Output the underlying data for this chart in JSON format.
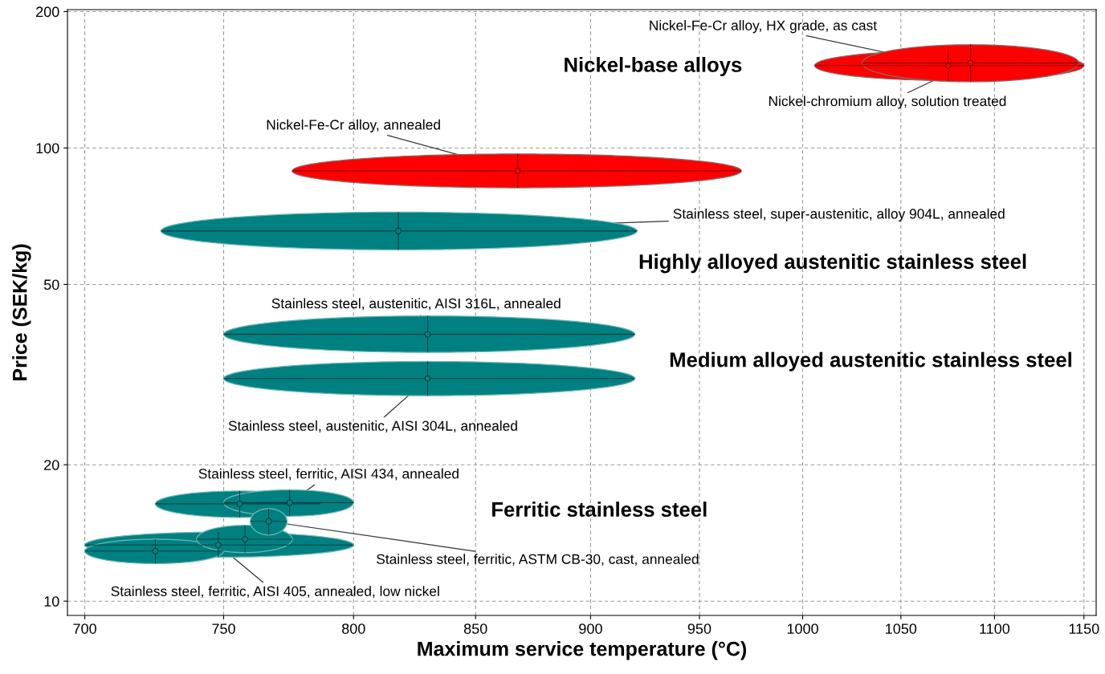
{
  "chart_data": {
    "type": "scatter",
    "xlabel": "Maximum service temperature (°C)",
    "ylabel": "Price (SEK/kg)",
    "log": "xy",
    "grid": true,
    "marker": "circle",
    "xlim": [
      694,
      1157
    ],
    "ylim": [
      9.3,
      202
    ],
    "xticks": [
      700,
      750,
      800,
      850,
      900,
      950,
      1000,
      1050,
      1100,
      1150
    ],
    "yticks": [
      10,
      20,
      50,
      100,
      200
    ],
    "annotations": [
      "Nickel-base alloys",
      "Highly alloyed austenitic stainless steel",
      "Medium alloyed austenitic stainless steel",
      "Ferritic stainless steel"
    ],
    "series": [
      {
        "name": "Nickel-Fe-Cr alloy, HX grade, as cast",
        "color": "#ff0000",
        "x": [
          1075
        ],
        "values": [
          152
        ],
        "xerrors": [
          [
            1006,
            1150
          ]
        ],
        "errors": [
          [
            141,
            164
          ]
        ]
      },
      {
        "name": "Nickel-chromium alloy, solution treated",
        "color": "#ff0000",
        "x": [
          1087
        ],
        "values": [
          154
        ],
        "xerrors": [
          [
            1030,
            1147
          ]
        ],
        "errors": [
          [
            140,
            169
          ]
        ]
      },
      {
        "name": "Nickel-Fe-Cr alloy, annealed",
        "color": "#ff0000",
        "x": [
          868
        ],
        "values": [
          89
        ],
        "xerrors": [
          [
            776,
            970
          ]
        ],
        "errors": [
          [
            81.7,
            97
          ]
        ]
      },
      {
        "name": "Stainless steel, super-austenitic, alloy 904L, annealed",
        "color": "#008080",
        "x": [
          818
        ],
        "values": [
          65.6
        ],
        "xerrors": [
          [
            727,
            921
          ]
        ],
        "errors": [
          [
            59.6,
            72.2
          ]
        ]
      },
      {
        "name": "Stainless steel, austenitic, AISI 316L, annealed",
        "color": "#008080",
        "x": [
          830
        ],
        "values": [
          38.8
        ],
        "xerrors": [
          [
            750,
            920
          ]
        ],
        "errors": [
          [
            35.4,
            42.6
          ]
        ]
      },
      {
        "name": "Stainless steel, austenitic, AISI 304L, annealed",
        "color": "#008080",
        "x": [
          830
        ],
        "values": [
          31.0
        ],
        "xerrors": [
          [
            750,
            920
          ]
        ],
        "errors": [
          [
            28.4,
            33.8
          ]
        ]
      },
      {
        "color": "#008080",
        "x": [
          756
        ],
        "values": [
          16.4
        ],
        "xerrors": [
          [
            725,
            787
          ]
        ],
        "errors": [
          [
            15.3,
            17.5
          ]
        ]
      },
      {
        "name": "Stainless steel, ferritic, AISI 434, annealed",
        "color": "#008080",
        "x": [
          775
        ],
        "values": [
          16.5
        ],
        "xerrors": [
          [
            750,
            800
          ]
        ],
        "errors": [
          [
            15.4,
            17.6
          ]
        ]
      },
      {
        "name": "Stainless steel, ferritic, AISI 405, annealed, low nickel",
        "color": "#008080",
        "x": [
          748
        ],
        "values": [
          13.3
        ],
        "xerrors": [
          [
            700,
            800
          ]
        ],
        "errors": [
          [
            12.5,
            14.2
          ]
        ]
      },
      {
        "color": "#008080",
        "x": [
          725
        ],
        "values": [
          12.9
        ],
        "xerrors": [
          [
            700,
            750
          ]
        ],
        "errors": [
          [
            12.1,
            13.7
          ]
        ]
      },
      {
        "color": "#008080",
        "x": [
          758
        ],
        "values": [
          13.7
        ],
        "xerrors": [
          [
            740,
            776
          ]
        ],
        "errors": [
          [
            12.8,
            14.7
          ]
        ]
      },
      {
        "name": "Stainless steel, ferritic, ASTM CB-30, cast, annealed",
        "color": "#008080",
        "x": [
          767
        ],
        "values": [
          15.0
        ],
        "xerrors": [
          [
            760,
            774
          ]
        ],
        "errors": [
          [
            14.0,
            16.0
          ]
        ]
      }
    ]
  }
}
